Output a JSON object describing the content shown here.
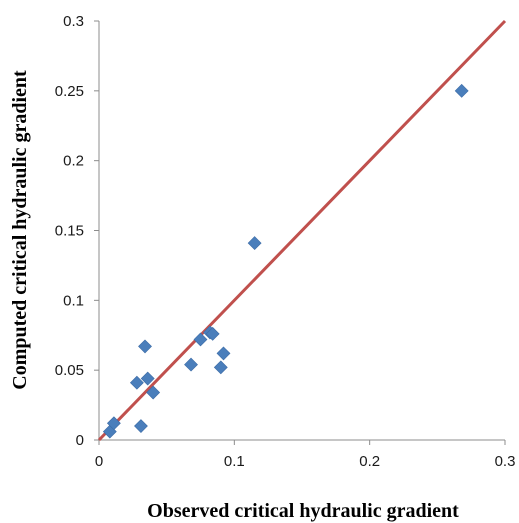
{
  "chart_data": {
    "type": "scatter",
    "title": "",
    "xlabel": "Observed critical hydraulic gradient",
    "ylabel": "Computed critical hydraulic gradient",
    "xlim": [
      0,
      0.3
    ],
    "ylim": [
      0,
      0.3
    ],
    "x_ticks": [
      "0",
      "0.1",
      "0.2",
      "0.3"
    ],
    "y_ticks": [
      "0",
      "0.05",
      "0.1",
      "0.15",
      "0.2",
      "0.25",
      "0.3"
    ],
    "grid": false,
    "legend": "none",
    "series": [
      {
        "marker": "diamond",
        "color": "#4A7EBB",
        "points": [
          {
            "x": 0.008,
            "y": 0.006
          },
          {
            "x": 0.011,
            "y": 0.012
          },
          {
            "x": 0.028,
            "y": 0.041
          },
          {
            "x": 0.031,
            "y": 0.01
          },
          {
            "x": 0.034,
            "y": 0.067
          },
          {
            "x": 0.036,
            "y": 0.044
          },
          {
            "x": 0.04,
            "y": 0.034
          },
          {
            "x": 0.068,
            "y": 0.054
          },
          {
            "x": 0.075,
            "y": 0.072
          },
          {
            "x": 0.082,
            "y": 0.077
          },
          {
            "x": 0.084,
            "y": 0.076
          },
          {
            "x": 0.09,
            "y": 0.052
          },
          {
            "x": 0.092,
            "y": 0.062
          },
          {
            "x": 0.115,
            "y": 0.141
          },
          {
            "x": 0.268,
            "y": 0.25
          }
        ]
      }
    ],
    "reference_line": {
      "from": [
        0,
        0
      ],
      "to": [
        0.3,
        0.3
      ],
      "color": "#C0504D"
    }
  }
}
